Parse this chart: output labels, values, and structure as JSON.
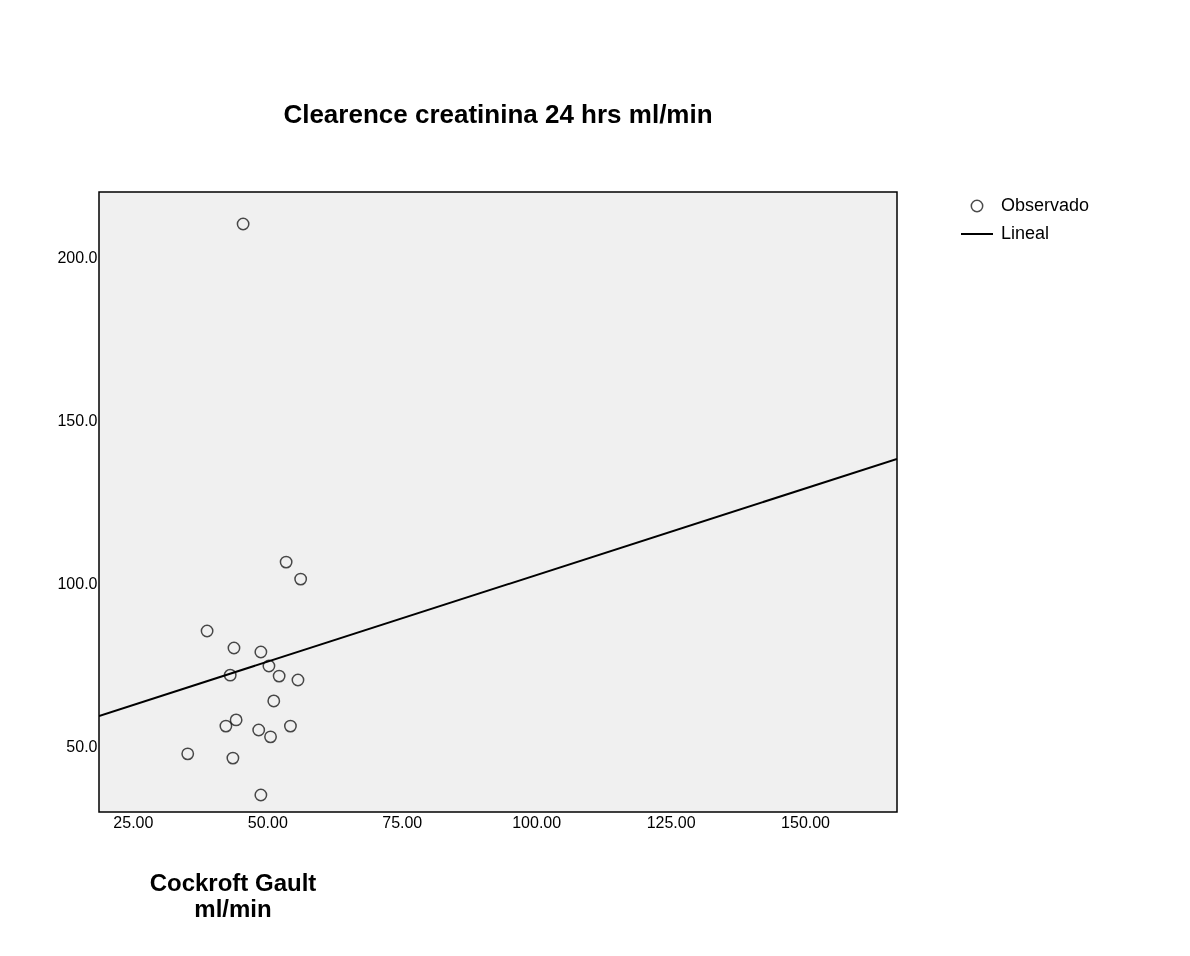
{
  "chart_data": {
    "type": "scatter",
    "title": "Clearence  creatinina 24 hrs ml/min",
    "xlabel": "Cockroft Gault\nml/min",
    "xlim": [
      18.7,
      167.1
    ],
    "ylim": [
      30.1,
      219.9
    ],
    "xticks": [
      {
        "value": 25,
        "label": "25.00"
      },
      {
        "value": 50,
        "label": "50.00"
      },
      {
        "value": 75,
        "label": "75.00"
      },
      {
        "value": 100,
        "label": "100.00"
      },
      {
        "value": 125,
        "label": "125.00"
      },
      {
        "value": 150,
        "label": "150.00"
      }
    ],
    "yticks": [
      {
        "value": 50,
        "label": "50.0"
      },
      {
        "value": 100,
        "label": "100.0"
      },
      {
        "value": 150,
        "label": "150.0"
      },
      {
        "value": 200,
        "label": "200.0"
      }
    ],
    "grid": false,
    "legend": "top right",
    "series": [
      {
        "name": "Observado",
        "marker": "circle",
        "color": "#000000",
        "x": [
          45.5,
          53.5,
          56.2,
          38.8,
          43.8,
          48.8,
          50.3,
          43.1,
          52.2,
          55.7,
          51.2,
          44.2,
          42.3,
          54.3,
          48.4,
          50.6,
          35.2,
          43.6,
          48.8
        ],
        "values": [
          210.1,
          106.6,
          101.4,
          85.5,
          80.3,
          79.1,
          74.8,
          72.0,
          71.7,
          70.5,
          64.1,
          58.3,
          56.4,
          56.4,
          55.2,
          53.1,
          47.9,
          46.6,
          35.3
        ]
      },
      {
        "name": "Lineal",
        "type": "line",
        "line_style": "solid",
        "color": "#000000",
        "x": [
          18.7,
          167.1
        ],
        "values": [
          59.5,
          138.2
        ]
      }
    ]
  }
}
